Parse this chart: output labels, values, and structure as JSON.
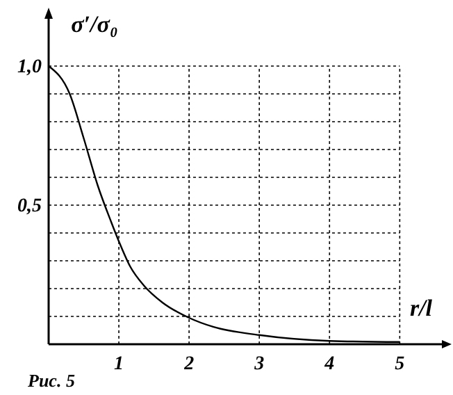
{
  "chart_data": {
    "type": "line",
    "xlabel": "r/l",
    "ylabel": "σ′/σ₀",
    "annotations": [
      "Рис. 5"
    ],
    "x": [
      0,
      0.3,
      0.5,
      0.7,
      0.89,
      1.0,
      1.16,
      1.36,
      1.62,
      2.0,
      2.35,
      3.0,
      4.0,
      5.0
    ],
    "series": [
      {
        "color": "#000000",
        "values": [
          1.0,
          0.9,
          0.74,
          0.57,
          0.44,
          0.37,
          0.28,
          0.21,
          0.15,
          0.095,
          0.062,
          0.033,
          0.012,
          0.008
        ]
      }
    ],
    "xlim": [
      0,
      5.6
    ],
    "ylim": [
      0,
      1.17
    ],
    "xticks": [
      1,
      2,
      3,
      4,
      5
    ],
    "yticks": [
      {
        "value": 0.1,
        "label": null
      },
      {
        "value": 0.2,
        "label": null
      },
      {
        "value": 0.3,
        "label": null
      },
      {
        "value": 0.4,
        "label": null
      },
      {
        "value": 0.5,
        "label": "0,5"
      },
      {
        "value": 0.6,
        "label": null
      },
      {
        "value": 0.7,
        "label": null
      },
      {
        "value": 0.8,
        "label": null
      },
      {
        "value": 0.9,
        "label": null
      },
      {
        "value": 1.0,
        "label": "1,0"
      }
    ],
    "grid": true,
    "marker": "none",
    "line_style": "solid"
  }
}
